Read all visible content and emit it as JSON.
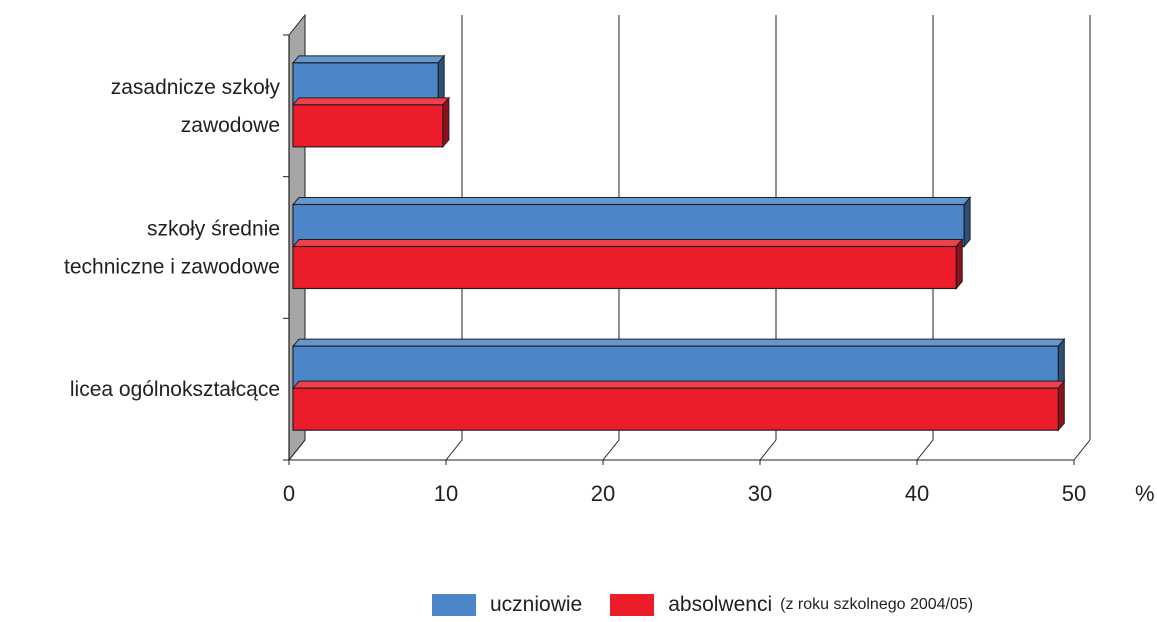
{
  "chart_data": {
    "type": "bar",
    "orientation": "horizontal",
    "categories": [
      [
        "zasadnicze szkoły",
        "zawodowe"
      ],
      [
        "szkoły średnie",
        "techniczne i zawodowe"
      ],
      [
        "licea ogólnokształcące"
      ]
    ],
    "series": [
      {
        "name": "uczniowie",
        "values": [
          9.5,
          43,
          49
        ],
        "color": "#4a86c8"
      },
      {
        "name": "absolwenci",
        "values": [
          9.8,
          42.5,
          49
        ],
        "color": "#ed1c2a"
      }
    ],
    "xticks": [
      "0",
      "10",
      "20",
      "30",
      "40",
      "50"
    ],
    "xlim": [
      0,
      50
    ],
    "xlabel": "%",
    "grid": true,
    "legend_position": "bottom",
    "legend_note": "(z roku szkolnego 2004/05)",
    "title": ""
  }
}
